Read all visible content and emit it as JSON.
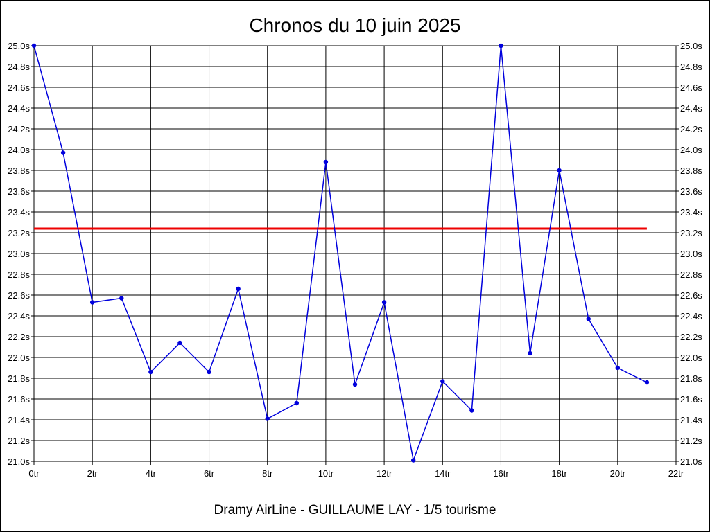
{
  "chart_data": {
    "type": "line",
    "title": "Chronos du 10 juin 2025",
    "footer": "Dramy AirLine - GUILLAUME LAY - 1/5 tourisme",
    "x": [
      0,
      1,
      2,
      3,
      4,
      5,
      6,
      7,
      8,
      9,
      10,
      11,
      12,
      13,
      14,
      15,
      16,
      17,
      18,
      19,
      20,
      21
    ],
    "series": [
      {
        "values": [
          25.0,
          23.97,
          22.53,
          22.57,
          21.86,
          22.14,
          21.86,
          22.66,
          21.41,
          21.56,
          23.88,
          21.74,
          22.53,
          21.01,
          21.77,
          21.49,
          25.0,
          22.04,
          23.8,
          22.37,
          21.9,
          21.76
        ],
        "color": "#0000dd"
      }
    ],
    "reference_line": {
      "value": 23.24,
      "color": "#ee0000"
    },
    "xlim": [
      0,
      22
    ],
    "ylim": [
      21.0,
      25.0
    ],
    "x_ticks": [
      "0tr",
      "2tr",
      "4tr",
      "6tr",
      "8tr",
      "10tr",
      "12tr",
      "14tr",
      "16tr",
      "18tr",
      "20tr",
      "22tr"
    ],
    "y_ticks": [
      "21.0s",
      "21.2s",
      "21.4s",
      "21.6s",
      "21.8s",
      "22.0s",
      "22.2s",
      "22.4s",
      "22.6s",
      "22.8s",
      "23.0s",
      "23.2s",
      "23.4s",
      "23.6s",
      "23.8s",
      "24.0s",
      "24.2s",
      "24.4s",
      "24.6s",
      "24.8s",
      "25.0s"
    ],
    "grid": true
  }
}
